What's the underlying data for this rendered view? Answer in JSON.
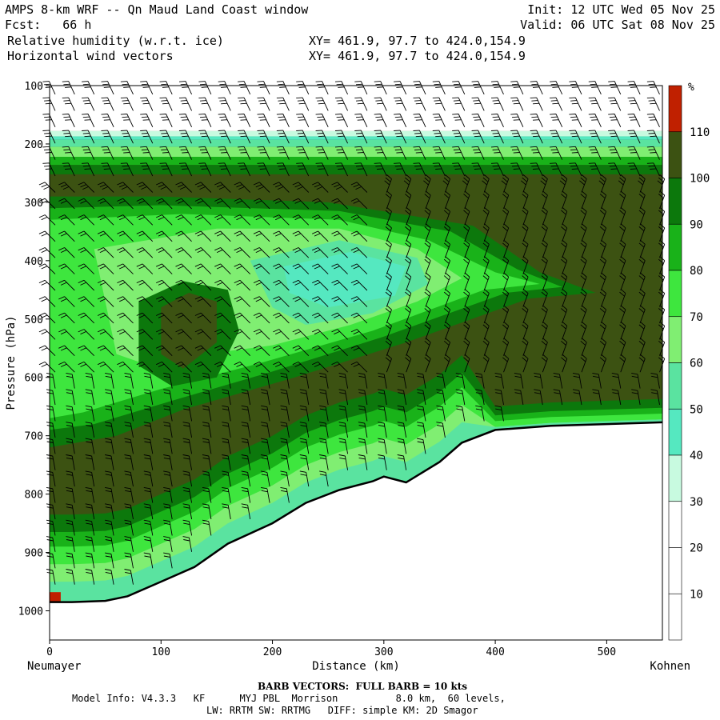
{
  "header": {
    "line1_left": "AMPS 8-km WRF -- Qn Maud Land Coast window",
    "line2_left": "Fcst:   66 h",
    "line3_left": "Relative humidity (w.r.t. ice)",
    "line4_left": "Horizontal wind vectors",
    "line1_right": "Init: 12 UTC Wed 05 Nov 25",
    "line2_right": "Valid: 06 UTC Sat 08 Nov 25",
    "line3_right": "XY= 461.9, 97.7 to 424.0,154.9",
    "line4_right": "XY= 461.9, 97.7 to 424.0,154.9"
  },
  "footer": {
    "barb_note": "BARB VECTORS:  FULL BARB = 10 kts",
    "model_info_1": "Model Info: V4.3.3   KF      MYJ PBL  Morrison          8.0 km,  60 levels,",
    "model_info_2": "LW: RRTM SW: RRTMG   DIFF: simple KM: 2D Smagor"
  },
  "chart_data": {
    "type": "heatmap",
    "title": "Relative humidity (w.r.t. ice)",
    "xlabel": "Distance (km)",
    "ylabel": "Pressure (hPa)",
    "x_ticks": [
      0,
      100,
      200,
      300,
      400,
      500
    ],
    "y_ticks": [
      100,
      200,
      300,
      400,
      500,
      600,
      700,
      800,
      900,
      1000
    ],
    "xlim": [
      0,
      550
    ],
    "ylim": [
      100,
      1050
    ],
    "y_inverted": true,
    "x_endpoint_labels": {
      "left": "Neumayer",
      "right": "Kohnen"
    },
    "colorbar": {
      "unit": "%",
      "levels": [
        10,
        20,
        30,
        40,
        50,
        60,
        70,
        80,
        90,
        100,
        110
      ],
      "colors": [
        "#ffffff",
        "#ffffff",
        "#ffffff",
        "#c8fae0",
        "#55e8c0",
        "#5ae3a0",
        "#80ee72",
        "#3ee63e",
        "#19b219",
        "#0c780c",
        "#3c5212",
        "#c02000"
      ]
    },
    "terrain_surface_hpa": [
      [
        0,
        985
      ],
      [
        20,
        985
      ],
      [
        50,
        983
      ],
      [
        70,
        975
      ],
      [
        100,
        950
      ],
      [
        130,
        925
      ],
      [
        160,
        885
      ],
      [
        200,
        850
      ],
      [
        230,
        815
      ],
      [
        260,
        793
      ],
      [
        290,
        778
      ],
      [
        300,
        770
      ],
      [
        320,
        780
      ],
      [
        350,
        745
      ],
      [
        370,
        712
      ],
      [
        400,
        690
      ],
      [
        450,
        683
      ],
      [
        500,
        680
      ],
      [
        550,
        677
      ]
    ],
    "wind_barbs": "full barb = 10 kts"
  }
}
